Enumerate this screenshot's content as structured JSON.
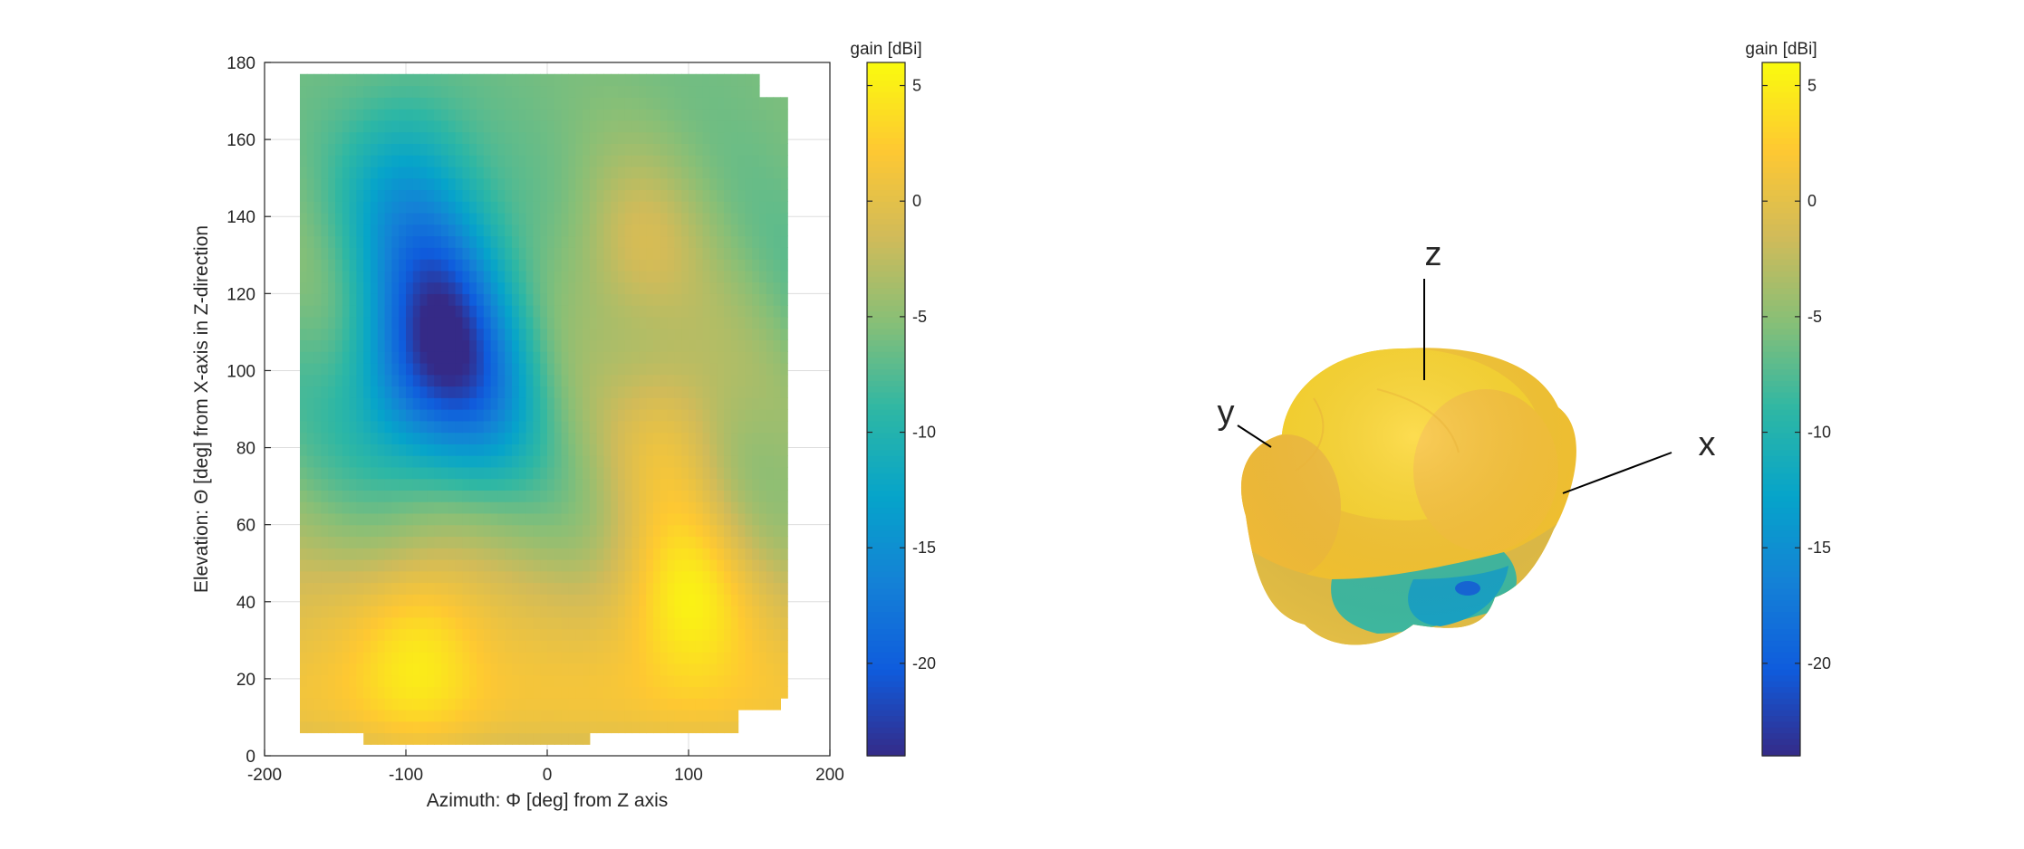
{
  "chart_data": [
    {
      "type": "heatmap",
      "title": "",
      "xlabel": "Azimuth: Φ [deg] from Z axis",
      "ylabel": "Elevation: Θ [deg] from X-axis in Z-direction",
      "xlim": [
        -200,
        200
      ],
      "ylim": [
        0,
        180
      ],
      "x_ticks": [
        -200,
        -100,
        0,
        100,
        200
      ],
      "y_ticks": [
        0,
        20,
        40,
        60,
        80,
        100,
        120,
        140,
        160,
        180
      ],
      "data_extent": {
        "azimuth": [
          -175,
          170
        ],
        "elevation": [
          3,
          177
        ]
      },
      "value_range": [
        -24,
        6
      ],
      "colormap": "parula",
      "grid": true,
      "colorbar": {
        "title": "gain [dBi]",
        "ticks": [
          5,
          0,
          -5,
          -10,
          -15,
          -20
        ],
        "range": [
          -24,
          6
        ]
      },
      "features": [
        {
          "azimuth": -70,
          "elevation": 120,
          "gain": -23
        },
        {
          "azimuth": -100,
          "elevation": 98,
          "gain": -22
        },
        {
          "azimuth": -50,
          "elevation": 95,
          "gain": -21
        },
        {
          "azimuth": -100,
          "elevation": 145,
          "gain": -18
        },
        {
          "azimuth": 90,
          "elevation": 85,
          "gain": 5
        },
        {
          "azimuth": 100,
          "elevation": 45,
          "gain": 5
        },
        {
          "azimuth": 60,
          "elevation": 130,
          "gain": 3
        },
        {
          "azimuth": -90,
          "elevation": 30,
          "gain": 2
        }
      ]
    },
    {
      "type": "surface-3d",
      "title": "",
      "axis_labels": {
        "x": "x",
        "y": "y",
        "z": "z"
      },
      "value_range": [
        -24,
        6
      ],
      "colormap": "parula",
      "colorbar": {
        "title": "gain [dBi]",
        "ticks": [
          5,
          0,
          -5,
          -10,
          -15,
          -20
        ],
        "range": [
          -24,
          6
        ]
      }
    }
  ],
  "colors": {
    "parula_stops": [
      "#352a87",
      "#0f5cdd",
      "#1481d6",
      "#06a4ca",
      "#2eb7a4",
      "#87bf77",
      "#d1bb59",
      "#fec832",
      "#f9fb0e"
    ],
    "axis": "#262626",
    "grid": "#dddddd"
  }
}
